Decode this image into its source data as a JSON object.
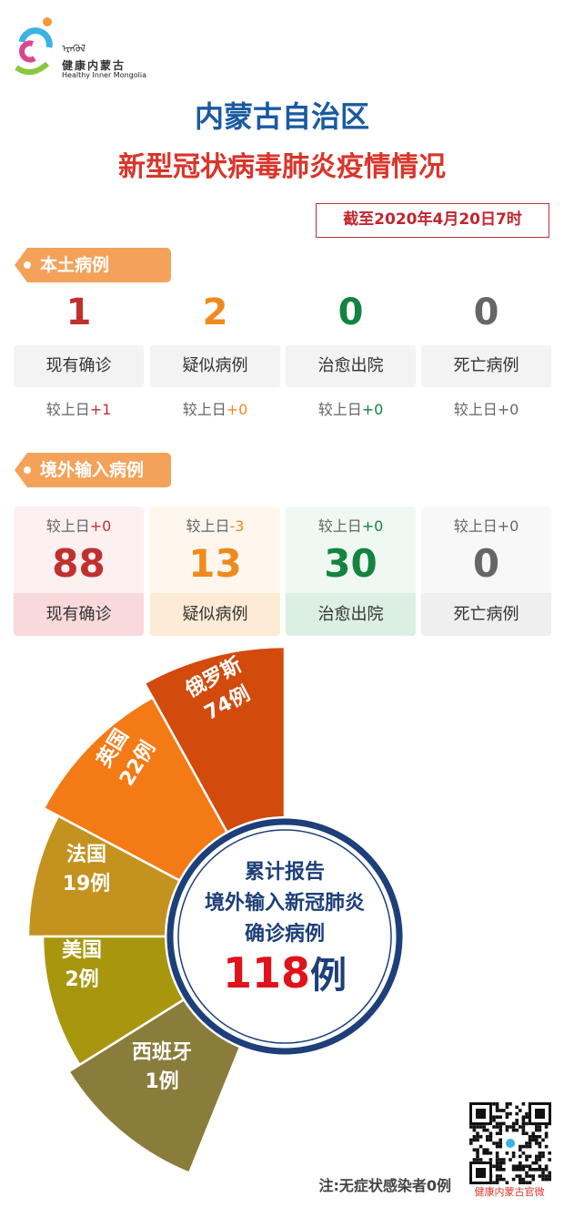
{
  "logo": {
    "mongolian": "ᠡᠷᠡᠭᠦᠯ",
    "chinese": "健康内蒙古",
    "english": "Healthy Inner Mongolia"
  },
  "header": {
    "title": "内蒙古自治区",
    "subtitle": "新型冠状病毒肺炎疫情情况",
    "as_of": "截至2020年4月20日7时"
  },
  "local": {
    "tag": "本土病例",
    "items": [
      {
        "label": "现有确诊",
        "value": "1",
        "delta_prefix": "较上日",
        "delta": "+1",
        "color": "#c0302e"
      },
      {
        "label": "疑似病例",
        "value": "2",
        "delta_prefix": "较上日",
        "delta": "+0",
        "color": "#f08a1e"
      },
      {
        "label": "治愈出院",
        "value": "0",
        "delta_prefix": "较上日",
        "delta": "+0",
        "color": "#13843f"
      },
      {
        "label": "死亡病例",
        "value": "0",
        "delta_prefix": "较上日",
        "delta": "+0",
        "color": "#666666"
      }
    ]
  },
  "imported": {
    "tag": "境外输入病例",
    "items": [
      {
        "label": "现有确诊",
        "value": "88",
        "delta_prefix": "较上日",
        "delta": "+0",
        "color": "#c0302e",
        "bg": "#fdf0f0",
        "band": "#f9d9d9"
      },
      {
        "label": "疑似病例",
        "value": "13",
        "delta_prefix": "较上日",
        "delta": "-3",
        "color": "#f08a1e",
        "bg": "#fff7ee",
        "band": "#fdebd6"
      },
      {
        "label": "治愈出院",
        "value": "30",
        "delta_prefix": "较上日",
        "delta": "+0",
        "color": "#13843f",
        "bg": "#f0f8f3",
        "band": "#dcefe3"
      },
      {
        "label": "死亡病例",
        "value": "0",
        "delta_prefix": "较上日",
        "delta": "+0",
        "color": "#666666",
        "bg": "#f8f8f8",
        "band": "#efefef"
      }
    ]
  },
  "chart_data": {
    "type": "pie",
    "style": "rose-half",
    "slices": [
      {
        "name": "俄罗斯",
        "label": "74例",
        "value": 74,
        "color": "#d24a0c"
      },
      {
        "name": "英国",
        "label": "22例",
        "value": 22,
        "color": "#f37a14"
      },
      {
        "name": "法国",
        "label": "19例",
        "value": 19,
        "color": "#c4921e"
      },
      {
        "name": "美国",
        "label": "2例",
        "value": 2,
        "color": "#a8960e"
      },
      {
        "name": "西班牙",
        "label": "1例",
        "value": 1,
        "color": "#8a7c3a"
      }
    ],
    "center": {
      "line1": "累计报告",
      "line2": "境外输入新冠肺炎",
      "line3": "确诊病例",
      "total": "118",
      "unit": "例"
    }
  },
  "footer": {
    "note": "注:无症状感染者0例",
    "qr_caption": "健康内蒙古官微"
  }
}
